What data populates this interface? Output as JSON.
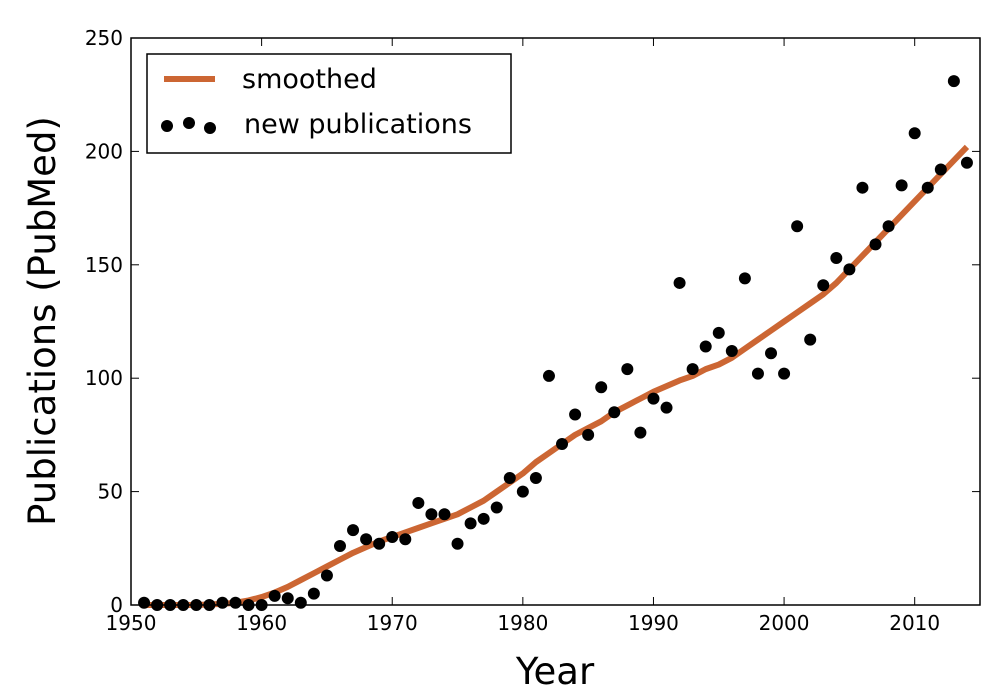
{
  "chart_data": {
    "type": "scatter",
    "title": "",
    "xlabel": "Year",
    "ylabel": "Publications (PubMed)",
    "xlim": [
      1950,
      2015
    ],
    "ylim": [
      0,
      250
    ],
    "xticks": [
      "1950",
      "1960",
      "1970",
      "1980",
      "1990",
      "2000",
      "2010"
    ],
    "yticks": [
      "0",
      "50",
      "100",
      "150",
      "200",
      "250"
    ],
    "grid": false,
    "legend": {
      "placement": "top-left",
      "entries": [
        "smoothed",
        "new publications"
      ]
    },
    "series": [
      {
        "name": "new publications",
        "kind": "scatter",
        "color": "#000000",
        "x": [
          1951,
          1952,
          1953,
          1954,
          1955,
          1956,
          1957,
          1958,
          1959,
          1960,
          1961,
          1962,
          1963,
          1964,
          1965,
          1966,
          1967,
          1968,
          1969,
          1970,
          1971,
          1972,
          1973,
          1974,
          1975,
          1976,
          1977,
          1978,
          1979,
          1980,
          1981,
          1982,
          1983,
          1984,
          1985,
          1986,
          1987,
          1988,
          1989,
          1990,
          1991,
          1992,
          1993,
          1994,
          1995,
          1996,
          1997,
          1998,
          1999,
          2000,
          2001,
          2002,
          2003,
          2004,
          2005,
          2006,
          2007,
          2008,
          2009,
          2010,
          2011,
          2012,
          2013,
          2014
        ],
        "y": [
          1,
          0,
          0,
          0,
          0,
          0,
          1,
          1,
          0,
          0,
          4,
          3,
          1,
          5,
          13,
          26,
          33,
          29,
          27,
          30,
          29,
          45,
          40,
          40,
          27,
          36,
          38,
          43,
          56,
          50,
          56,
          101,
          71,
          84,
          75,
          96,
          85,
          104,
          76,
          91,
          87,
          142,
          104,
          114,
          120,
          112,
          144,
          102,
          111,
          102,
          167,
          117,
          141,
          153,
          148,
          184,
          159,
          167,
          185,
          208,
          184,
          192,
          231,
          195
        ]
      },
      {
        "name": "smoothed",
        "kind": "line",
        "color": "#cc6633",
        "x": [
          1951,
          1953,
          1955,
          1957,
          1958,
          1959,
          1960,
          1961,
          1962,
          1963,
          1964,
          1965,
          1966,
          1967,
          1968,
          1969,
          1970,
          1971,
          1972,
          1973,
          1974,
          1975,
          1976,
          1977,
          1978,
          1979,
          1980,
          1981,
          1982,
          1983,
          1984,
          1985,
          1986,
          1987,
          1988,
          1989,
          1990,
          1991,
          1992,
          1993,
          1994,
          1995,
          1996,
          1997,
          1998,
          1999,
          2000,
          2001,
          2002,
          2003,
          2004,
          2005,
          2006,
          2007,
          2008,
          2009,
          2010,
          2011,
          2012,
          2013,
          2014
        ],
        "y": [
          0,
          0,
          0,
          0.5,
          1,
          2,
          3.5,
          5.5,
          8,
          11,
          14,
          17,
          20,
          23,
          25.5,
          28,
          30,
          32,
          34,
          36,
          38,
          40,
          43,
          46,
          50,
          54,
          58,
          63,
          67,
          71,
          75,
          78,
          81,
          85,
          88,
          91,
          94,
          96.5,
          99,
          101,
          104,
          106,
          109,
          113,
          117,
          121,
          125,
          129,
          133,
          137,
          142,
          148,
          154,
          160,
          166,
          172,
          178,
          184,
          190,
          196,
          202
        ]
      }
    ]
  }
}
